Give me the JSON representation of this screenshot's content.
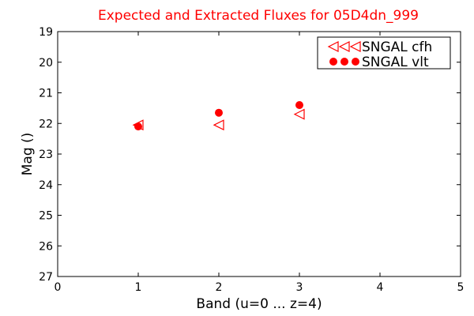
{
  "chart_data": {
    "type": "scatter",
    "title": "Expected and Extracted Fluxes for 05D4dn_999",
    "title_color": "#ff0000",
    "xlabel": "Band (u=0 ... z=4)",
    "ylabel": "Mag ()",
    "xlim": [
      0,
      5
    ],
    "ylim": [
      27,
      19
    ],
    "y_inverted": true,
    "x_ticks": [
      "0",
      "1",
      "2",
      "3",
      "4",
      "5"
    ],
    "y_ticks": [
      "19",
      "20",
      "21",
      "22",
      "23",
      "24",
      "25",
      "26",
      "27"
    ],
    "grid": false,
    "legend_position": "top-right",
    "series": [
      {
        "name": "SNGAL cfh",
        "marker": "triangle-left-open",
        "color": "#ff0000",
        "x": [
          1,
          2,
          3
        ],
        "y": [
          22.05,
          22.05,
          21.7
        ]
      },
      {
        "name": "SNGAL vlt",
        "marker": "circle-filled",
        "color": "#ff0000",
        "x": [
          1,
          2,
          3
        ],
        "y": [
          22.1,
          21.65,
          21.4
        ]
      }
    ]
  }
}
